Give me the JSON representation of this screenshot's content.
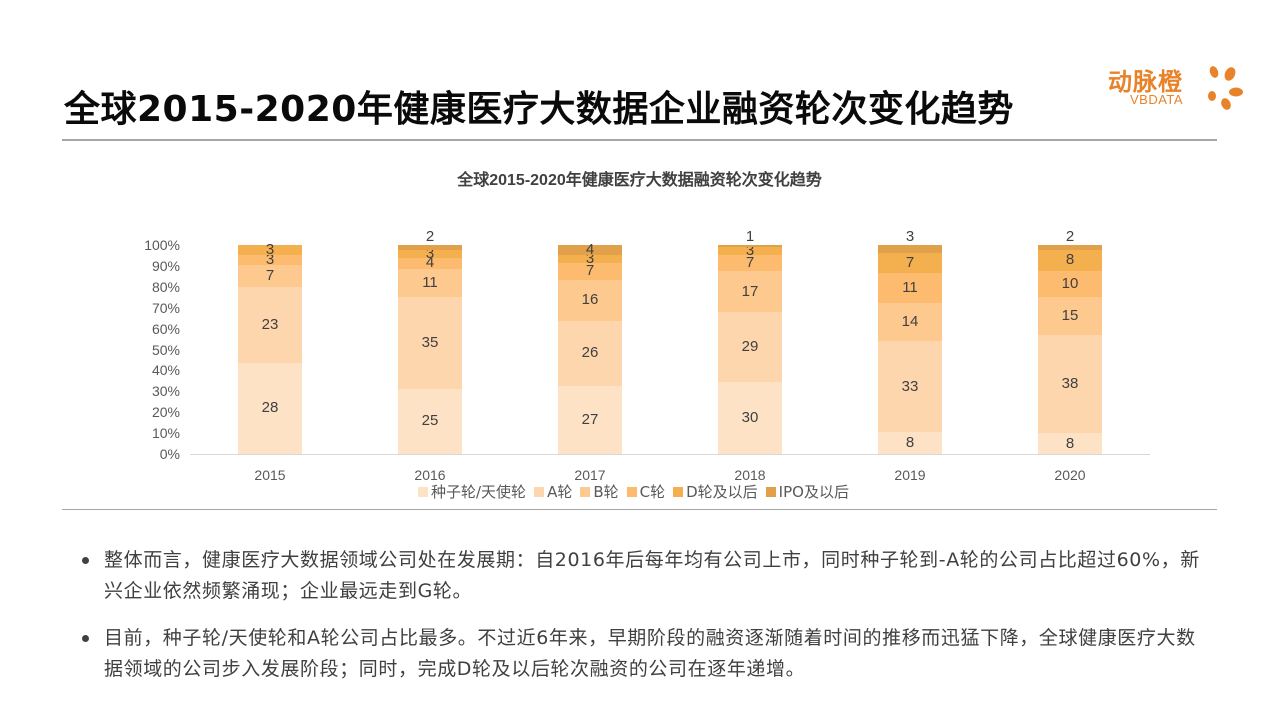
{
  "header": {
    "title": "全球2015-2020年健康医疗大数据企业融资轮次变化趋势",
    "logo": {
      "cn": "动脉橙",
      "en": "VBDATA",
      "color": "#E8832A",
      "icon": "orange-burst-logo-icon"
    }
  },
  "chart_data": {
    "type": "bar",
    "stacked": true,
    "normalized_percent": true,
    "title": "全球2015-2020年健康医疗大数据融资轮次变化趋势",
    "xlabel": "",
    "ylabel": "",
    "ylim": [
      0,
      100
    ],
    "y_ticks": [
      "0%",
      "10%",
      "20%",
      "30%",
      "40%",
      "50%",
      "60%",
      "70%",
      "80%",
      "90%",
      "100%"
    ],
    "categories": [
      "2015",
      "2016",
      "2017",
      "2018",
      "2019",
      "2020"
    ],
    "series": [
      {
        "name": "种子轮/天使轮",
        "color": "#FDE2C6",
        "values": [
          28,
          25,
          27,
          30,
          8,
          8
        ]
      },
      {
        "name": "A轮",
        "color": "#FDD6AE",
        "values": [
          23,
          35,
          26,
          29,
          33,
          38
        ]
      },
      {
        "name": "B轮",
        "color": "#FDC98F",
        "values": [
          7,
          11,
          16,
          17,
          14,
          15
        ]
      },
      {
        "name": "C轮",
        "color": "#FCBB6F",
        "values": [
          3,
          4,
          7,
          7,
          11,
          10
        ]
      },
      {
        "name": "D轮及以后",
        "color": "#F4AF4F",
        "values": [
          3,
          3,
          3,
          3,
          7,
          8
        ]
      },
      {
        "name": "IPO及以后",
        "color": "#E1A14A",
        "values": [
          0,
          2,
          4,
          1,
          3,
          2
        ]
      }
    ],
    "legend_position": "bottom",
    "grid": false
  },
  "bullets": [
    {
      "text": "整体而言，健康医疗大数据领域公司处在发展期：自2016年后每年均有公司上市，同时种子轮到-A轮的公司占比超过60%，新兴企业依然频繁涌现；企业最远走到G轮。"
    },
    {
      "text": "目前，种子轮/天使轮和A轮公司占比最多。不过近6年来，早期阶段的融资逐渐随着时间的推移而迅猛下降，全球健康医疗大数据领域的公司步入发展阶段；同时，完成D轮及以后轮次融资的公司在逐年递增。"
    }
  ]
}
